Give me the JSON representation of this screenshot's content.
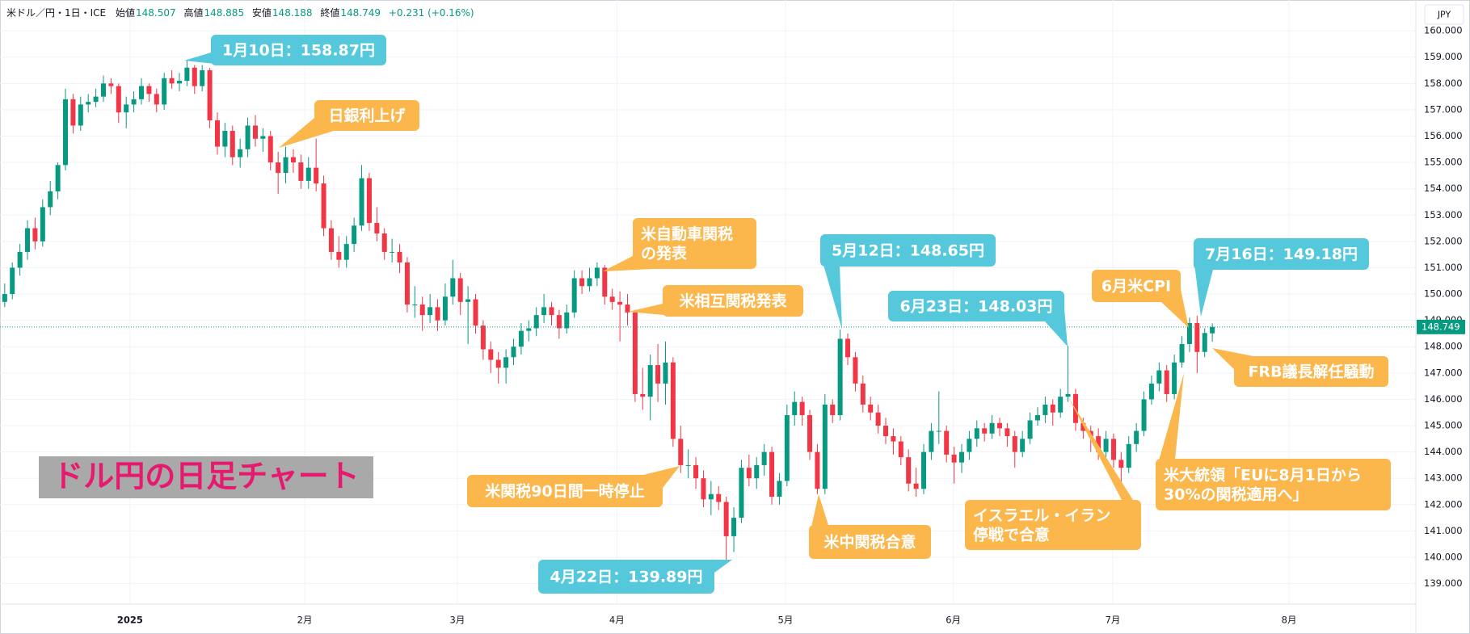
{
  "chart_data": {
    "type": "candlestick",
    "title": "ドル円の日足チャート",
    "header": {
      "symbol": "米ドル／円・1日・ICE",
      "labels": [
        "始値",
        "高値",
        "安値",
        "終値"
      ],
      "change": "+0.231 (+0.16%)"
    },
    "currency": "JPY",
    "up_color": "#089981",
    "down_color": "#f23645",
    "grid": true,
    "xlim": [
      -0.62,
      185.8
    ],
    "xticks": [
      {
        "value": 16.5,
        "label": "2025"
      },
      {
        "value": 39.5,
        "label": "2月"
      },
      {
        "value": 59.6,
        "label": "3月"
      },
      {
        "value": 80.6,
        "label": "4月"
      },
      {
        "value": 102.8,
        "label": "5月"
      },
      {
        "value": 124.9,
        "label": "6月"
      },
      {
        "value": 145.9,
        "label": "7月"
      },
      {
        "value": 169.1,
        "label": "8月"
      }
    ],
    "ylim": [
      138.22,
      161.17
    ],
    "yticks": [
      {
        "value": 139,
        "label": "139.000"
      },
      {
        "value": 140,
        "label": "140.000"
      },
      {
        "value": 141,
        "label": "141.000"
      },
      {
        "value": 142,
        "label": "142.000"
      },
      {
        "value": 143,
        "label": "143.000"
      },
      {
        "value": 144,
        "label": "144.000"
      },
      {
        "value": 145,
        "label": "145.000"
      },
      {
        "value": 146,
        "label": "146.000"
      },
      {
        "value": 147,
        "label": "147.000"
      },
      {
        "value": 148,
        "label": "148.000"
      },
      {
        "value": 149,
        "label": "149.000"
      },
      {
        "value": 150,
        "label": "150.000"
      },
      {
        "value": 151,
        "label": "151.000"
      },
      {
        "value": 152,
        "label": "152.000"
      },
      {
        "value": 153,
        "label": "153.000"
      },
      {
        "value": 154,
        "label": "154.000"
      },
      {
        "value": 155,
        "label": "155.000"
      },
      {
        "value": 156,
        "label": "156.000"
      },
      {
        "value": 157,
        "label": "157.000"
      },
      {
        "value": 158,
        "label": "158.000"
      },
      {
        "value": 159,
        "label": "159.000"
      },
      {
        "value": 160,
        "label": "160.000"
      }
    ],
    "ohlc": [
      [
        149.7,
        150.4,
        149.5,
        150.0
      ],
      [
        150.0,
        151.2,
        149.8,
        151.0
      ],
      [
        151.0,
        151.9,
        150.7,
        151.6
      ],
      [
        151.6,
        152.8,
        151.3,
        152.5
      ],
      [
        152.5,
        152.9,
        151.7,
        152.0
      ],
      [
        152.0,
        153.6,
        151.8,
        153.3
      ],
      [
        153.3,
        154.3,
        153.0,
        153.9
      ],
      [
        153.9,
        155.0,
        153.6,
        154.9
      ],
      [
        154.9,
        157.8,
        154.7,
        157.4
      ],
      [
        157.4,
        157.6,
        156.1,
        156.4
      ],
      [
        156.4,
        157.5,
        156.2,
        157.2
      ],
      [
        157.2,
        157.6,
        156.9,
        157.3
      ],
      [
        157.3,
        157.8,
        157.1,
        157.5
      ],
      [
        157.5,
        158.3,
        157.3,
        158.0
      ],
      [
        158.0,
        158.2,
        157.6,
        157.9
      ],
      [
        157.9,
        158.0,
        156.5,
        156.9
      ],
      [
        156.9,
        157.5,
        156.3,
        157.2
      ],
      [
        157.2,
        157.7,
        156.9,
        157.4
      ],
      [
        157.4,
        158.2,
        157.2,
        157.9
      ],
      [
        157.9,
        158.0,
        157.3,
        157.6
      ],
      [
        157.6,
        157.8,
        156.9,
        157.2
      ],
      [
        157.2,
        158.4,
        157.0,
        158.2
      ],
      [
        158.2,
        158.5,
        157.8,
        158.0
      ],
      [
        158.0,
        158.4,
        157.7,
        158.1
      ],
      [
        158.1,
        158.87,
        157.9,
        158.6
      ],
      [
        158.6,
        158.7,
        157.6,
        157.9
      ],
      [
        157.9,
        158.7,
        157.7,
        158.5
      ],
      [
        158.5,
        158.6,
        156.3,
        156.6
      ],
      [
        156.6,
        156.9,
        155.3,
        155.6
      ],
      [
        155.6,
        156.5,
        155.2,
        156.2
      ],
      [
        156.2,
        156.4,
        154.9,
        155.2
      ],
      [
        155.2,
        155.9,
        154.8,
        155.5
      ],
      [
        155.5,
        156.7,
        155.2,
        156.4
      ],
      [
        156.4,
        156.8,
        155.6,
        155.9
      ],
      [
        155.9,
        156.3,
        155.4,
        156.0
      ],
      [
        156.0,
        156.2,
        154.7,
        155.0
      ],
      [
        155.0,
        155.4,
        153.8,
        154.6
      ],
      [
        154.6,
        155.6,
        154.2,
        155.2
      ],
      [
        155.2,
        155.5,
        154.6,
        155.0
      ],
      [
        155.0,
        155.3,
        154.0,
        154.3
      ],
      [
        154.3,
        155.2,
        154.0,
        154.8
      ],
      [
        154.8,
        155.9,
        153.9,
        154.2
      ],
      [
        154.2,
        154.5,
        152.2,
        152.5
      ],
      [
        152.5,
        152.8,
        151.3,
        151.6
      ],
      [
        151.6,
        152.2,
        151.0,
        151.3
      ],
      [
        151.3,
        152.2,
        151.0,
        151.9
      ],
      [
        151.9,
        152.9,
        151.6,
        152.6
      ],
      [
        152.6,
        154.9,
        152.4,
        154.4
      ],
      [
        154.4,
        154.6,
        152.4,
        152.7
      ],
      [
        152.7,
        153.3,
        152.0,
        152.3
      ],
      [
        152.3,
        152.5,
        151.3,
        151.6
      ],
      [
        151.6,
        152.1,
        151.2,
        151.6
      ],
      [
        151.6,
        151.9,
        150.8,
        151.2
      ],
      [
        151.2,
        151.4,
        149.3,
        149.6
      ],
      [
        149.6,
        150.3,
        149.1,
        149.6
      ],
      [
        149.6,
        149.9,
        148.6,
        149.2
      ],
      [
        149.2,
        150.0,
        148.9,
        149.5
      ],
      [
        149.5,
        149.8,
        148.6,
        149.0
      ],
      [
        149.0,
        150.4,
        148.8,
        149.9
      ],
      [
        149.9,
        151.3,
        149.6,
        150.6
      ],
      [
        150.6,
        150.8,
        149.2,
        149.7
      ],
      [
        149.7,
        150.3,
        148.1,
        149.8
      ],
      [
        149.8,
        150.0,
        148.5,
        148.8
      ],
      [
        148.8,
        149.0,
        147.5,
        147.9
      ],
      [
        147.9,
        148.2,
        147.0,
        147.5
      ],
      [
        147.5,
        147.8,
        146.6,
        147.2
      ],
      [
        147.2,
        147.9,
        146.6,
        147.6
      ],
      [
        147.6,
        148.3,
        147.3,
        148.0
      ],
      [
        148.0,
        148.9,
        147.7,
        148.6
      ],
      [
        148.6,
        149.0,
        148.2,
        148.7
      ],
      [
        148.7,
        149.5,
        148.4,
        149.2
      ],
      [
        149.2,
        150.0,
        148.9,
        149.5
      ],
      [
        149.5,
        149.7,
        148.8,
        149.2
      ],
      [
        149.2,
        149.4,
        148.3,
        148.7
      ],
      [
        148.7,
        149.6,
        148.5,
        149.3
      ],
      [
        149.3,
        150.9,
        149.1,
        150.6
      ],
      [
        150.6,
        150.9,
        150.0,
        150.3
      ],
      [
        150.3,
        151.0,
        150.1,
        150.6
      ],
      [
        150.6,
        151.2,
        150.3,
        151.0
      ],
      [
        151.0,
        151.1,
        149.6,
        149.9
      ],
      [
        149.9,
        150.2,
        149.4,
        149.7
      ],
      [
        149.7,
        150.1,
        148.2,
        149.6
      ],
      [
        149.6,
        150.0,
        148.8,
        149.3
      ],
      [
        149.3,
        149.4,
        145.9,
        146.2
      ],
      [
        146.2,
        147.2,
        145.6,
        146.1
      ],
      [
        146.1,
        147.7,
        145.2,
        147.3
      ],
      [
        147.3,
        148.1,
        145.9,
        146.6
      ],
      [
        146.6,
        148.2,
        145.8,
        147.4
      ],
      [
        147.4,
        147.6,
        144.2,
        144.5
      ],
      [
        144.5,
        145.0,
        143.2,
        143.5
      ],
      [
        143.5,
        144.1,
        143.0,
        143.5
      ],
      [
        143.5,
        143.8,
        142.6,
        143.0
      ],
      [
        143.0,
        143.3,
        141.9,
        142.2
      ],
      [
        142.2,
        142.9,
        141.6,
        142.4
      ],
      [
        142.4,
        142.7,
        141.8,
        142.1
      ],
      [
        142.1,
        142.3,
        139.89,
        140.8
      ],
      [
        140.8,
        141.9,
        140.2,
        141.5
      ],
      [
        141.5,
        143.7,
        141.3,
        143.4
      ],
      [
        143.4,
        143.9,
        142.7,
        143.0
      ],
      [
        143.0,
        143.8,
        142.6,
        143.5
      ],
      [
        143.5,
        144.3,
        143.1,
        144.0
      ],
      [
        144.0,
        144.2,
        142.0,
        142.3
      ],
      [
        142.3,
        143.2,
        142.0,
        142.9
      ],
      [
        142.9,
        145.8,
        142.7,
        145.4
      ],
      [
        145.4,
        146.3,
        145.0,
        145.9
      ],
      [
        145.9,
        146.1,
        145.0,
        145.4
      ],
      [
        145.4,
        145.6,
        143.7,
        144.0
      ],
      [
        144.0,
        144.3,
        142.4,
        142.6
      ],
      [
        142.6,
        146.2,
        142.4,
        145.8
      ],
      [
        145.8,
        146.0,
        145.1,
        145.4
      ],
      [
        145.4,
        148.65,
        145.2,
        148.3
      ],
      [
        148.3,
        148.5,
        147.3,
        147.6
      ],
      [
        147.6,
        147.8,
        146.3,
        146.6
      ],
      [
        146.6,
        146.9,
        145.5,
        145.8
      ],
      [
        145.8,
        146.1,
        145.2,
        145.5
      ],
      [
        145.5,
        145.8,
        144.7,
        145.0
      ],
      [
        145.0,
        145.3,
        144.3,
        144.6
      ],
      [
        144.6,
        144.9,
        143.9,
        144.4
      ],
      [
        144.4,
        144.6,
        143.5,
        143.8
      ],
      [
        143.8,
        144.1,
        142.5,
        142.8
      ],
      [
        142.8,
        143.4,
        142.3,
        142.6
      ],
      [
        142.6,
        144.3,
        142.4,
        144.0
      ],
      [
        144.0,
        145.1,
        143.7,
        144.8
      ],
      [
        144.8,
        146.3,
        144.3,
        144.8
      ],
      [
        144.8,
        145.0,
        143.6,
        143.9
      ],
      [
        143.9,
        144.2,
        142.8,
        143.6
      ],
      [
        143.6,
        144.3,
        143.2,
        144.0
      ],
      [
        144.0,
        144.8,
        143.7,
        144.5
      ],
      [
        144.5,
        145.2,
        144.2,
        144.9
      ],
      [
        144.9,
        145.1,
        144.4,
        144.7
      ],
      [
        144.7,
        145.4,
        144.5,
        145.1
      ],
      [
        145.1,
        145.3,
        144.6,
        144.9
      ],
      [
        144.9,
        145.1,
        144.2,
        144.6
      ],
      [
        144.6,
        144.8,
        143.4,
        144.0
      ],
      [
        144.0,
        144.8,
        143.8,
        144.5
      ],
      [
        144.5,
        145.5,
        144.3,
        145.2
      ],
      [
        145.2,
        145.7,
        145.0,
        145.4
      ],
      [
        145.4,
        146.1,
        145.1,
        145.8
      ],
      [
        145.8,
        146.0,
        145.0,
        145.5
      ],
      [
        145.5,
        146.4,
        145.3,
        146.1
      ],
      [
        146.1,
        148.03,
        145.9,
        146.2
      ],
      [
        146.2,
        146.4,
        144.8,
        145.1
      ],
      [
        145.1,
        145.3,
        144.5,
        144.8
      ],
      [
        144.8,
        145.0,
        144.0,
        144.6
      ],
      [
        144.6,
        144.9,
        143.7,
        144.0
      ],
      [
        144.0,
        144.8,
        143.8,
        144.5
      ],
      [
        144.5,
        144.7,
        143.4,
        143.7
      ],
      [
        143.7,
        144.0,
        142.7,
        143.4
      ],
      [
        143.4,
        144.6,
        143.2,
        144.3
      ],
      [
        144.3,
        145.1,
        144.0,
        144.8
      ],
      [
        144.8,
        146.3,
        144.6,
        146.0
      ],
      [
        146.0,
        146.9,
        145.8,
        146.6
      ],
      [
        146.6,
        147.4,
        146.3,
        147.1
      ],
      [
        147.1,
        147.3,
        145.9,
        146.2
      ],
      [
        146.2,
        147.7,
        146.0,
        147.4
      ],
      [
        147.4,
        148.4,
        147.2,
        148.1
      ],
      [
        148.1,
        149.1,
        147.8,
        148.9
      ],
      [
        148.9,
        149.18,
        147.0,
        147.8
      ],
      [
        147.8,
        148.7,
        147.6,
        148.52
      ],
      [
        148.507,
        148.885,
        148.188,
        148.749
      ]
    ],
    "annotations": [
      {
        "text": "1月10日：158.87円",
        "color": "#55c8dc"
      },
      {
        "text": "日銀利上げ",
        "color": "#fbb64c"
      },
      {
        "text": [
          "米自動車関税",
          "の発表"
        ],
        "color": "#fbb64c"
      },
      {
        "text": "米相互関税発表",
        "color": "#fbb64c"
      },
      {
        "text": "米関税90日間一時停止",
        "color": "#fbb64c"
      },
      {
        "text": "4月22日：139.89円",
        "color": "#55c8dc"
      },
      {
        "text": "米中関税合意",
        "color": "#fbb64c"
      },
      {
        "text": "5月12日：148.65円",
        "color": "#55c8dc"
      },
      {
        "text": "6月23日：148.03円",
        "color": "#55c8dc"
      },
      {
        "text": [
          "イスラエル・イラン",
          "停戦で合意"
        ],
        "color": "#fbb64c"
      },
      {
        "text": "6月米CPI",
        "color": "#fbb64c"
      },
      {
        "text": "7月16日：149.18円",
        "color": "#55c8dc"
      },
      {
        "text": "FRB議長解任騒動",
        "color": "#fbb64c"
      },
      {
        "text": [
          "米大統領「EUに8月1日から",
          "30%の関税適用へ」"
        ],
        "color": "#fbb64c"
      }
    ]
  }
}
